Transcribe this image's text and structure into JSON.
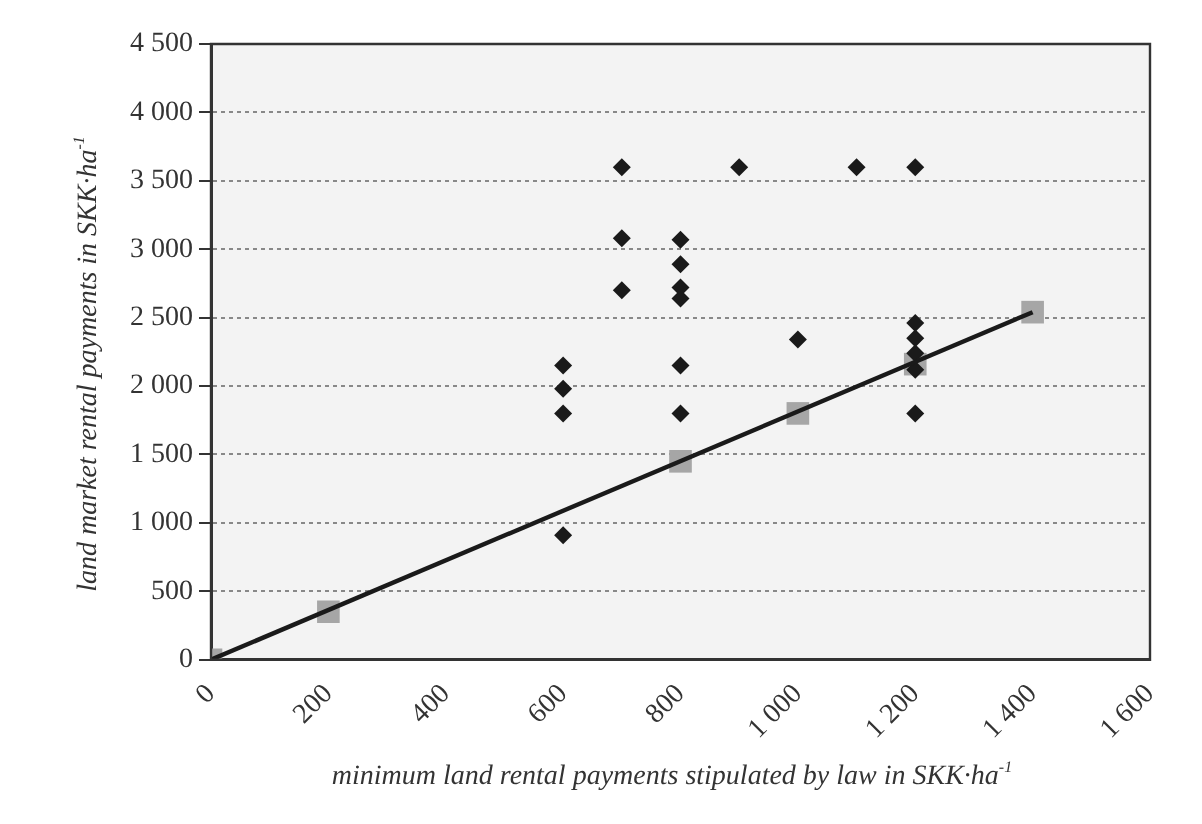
{
  "chart_data": {
    "type": "scatter",
    "xlabel": "minimum land rental payments stipulated by law in SKK·ha$^{-1}$",
    "ylabel": "land market rental payments in SKK·ha$^{-1}$",
    "xlim": [
      0,
      1600
    ],
    "xticks": [
      0,
      200,
      400,
      600,
      800,
      {
        "value": 1000,
        "label": "1 000"
      },
      {
        "value": 1200,
        "label": "1 200"
      },
      {
        "value": 1400,
        "label": "1 400"
      },
      {
        "value": 1600,
        "label": "1 600"
      }
    ],
    "ylim": [
      0,
      4500
    ],
    "yticks": [
      0,
      500,
      {
        "value": 1000,
        "label": "1 000"
      },
      {
        "value": 1500,
        "label": "1 500"
      },
      {
        "value": 2000,
        "label": "2 000"
      },
      {
        "value": 2500,
        "label": "2 500"
      },
      {
        "value": 3000,
        "label": "3 000"
      },
      {
        "value": 3500,
        "label": "3 500"
      },
      {
        "value": 4000,
        "label": "4 000"
      },
      {
        "value": 4500,
        "label": "4 500"
      }
    ],
    "grid": "y",
    "legend": false,
    "series": [
      {
        "marker": "diamond",
        "color": "#1a1a1a",
        "x": [
          600,
          600,
          600,
          600,
          700,
          700,
          700,
          800,
          800,
          800,
          800,
          800,
          800,
          900,
          1000,
          1100,
          1200,
          1200,
          1200,
          1200,
          1200,
          1200
        ],
        "values": [
          2150,
          1980,
          1800,
          910,
          3600,
          3080,
          2700,
          3070,
          2890,
          2720,
          2640,
          2150,
          1800,
          3600,
          2340,
          3600,
          3600,
          2460,
          2350,
          2240,
          2120,
          1800
        ]
      },
      {
        "marker": "square",
        "color": "#a6a6a6",
        "x": [
          0,
          200,
          800,
          1000,
          1200,
          1400
        ],
        "values": [
          0,
          350,
          1450,
          1800,
          2160,
          2540
        ]
      },
      {
        "type": "line",
        "marker": "none",
        "line_style": "solid",
        "color": "#1a1a1a",
        "x": [
          0,
          1400
        ],
        "values": [
          0,
          2540
        ]
      }
    ]
  }
}
